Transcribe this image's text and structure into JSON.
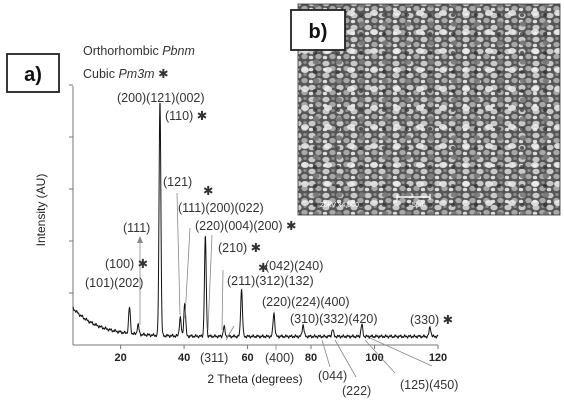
{
  "panel_a_label": "a)",
  "panel_b_label": "b)",
  "sem_scale_text": "5µm",
  "sem_info_text": "20kV  x4,000",
  "chart_data": {
    "type": "line",
    "title": "",
    "xlabel": "2 Theta (degrees)",
    "ylabel": "Intensity (AU)",
    "xlim": [
      5,
      120
    ],
    "ylim": [
      0,
      100
    ],
    "xticks": [
      20,
      40,
      60,
      80,
      100,
      120
    ],
    "y_tick_labels": false,
    "grid": false,
    "legend": [
      {
        "name": "Orthorhombic",
        "italic": "Pbnm",
        "marker": ""
      },
      {
        "name": "Cubic",
        "italic": "Pm3m",
        "marker": "✱"
      }
    ],
    "peaks": [
      {
        "x": 22.8,
        "y": 11
      },
      {
        "x": 25.5,
        "y": 4
      },
      {
        "x": 32.4,
        "y": 100
      },
      {
        "x": 38.8,
        "y": 8
      },
      {
        "x": 40.2,
        "y": 14
      },
      {
        "x": 46.7,
        "y": 42
      },
      {
        "x": 52.6,
        "y": 4
      },
      {
        "x": 58.1,
        "y": 20
      },
      {
        "x": 68.3,
        "y": 10
      },
      {
        "x": 77.5,
        "y": 5
      },
      {
        "x": 86.8,
        "y": 3
      },
      {
        "x": 96.0,
        "y": 5
      },
      {
        "x": 117.5,
        "y": 4
      }
    ],
    "annotations": [
      {
        "text": "(200)(121)(002)",
        "marker": ""
      },
      {
        "text": "(110)",
        "marker": "✱"
      },
      {
        "text": "(121)",
        "marker": ""
      },
      {
        "text": "(111)(200)(022)",
        "marker": "✱"
      },
      {
        "text": "(111)",
        "marker": ""
      },
      {
        "text": "(100)",
        "marker": "✱"
      },
      {
        "text": "(101)(202)",
        "marker": ""
      },
      {
        "text": "(220)(004)(200)",
        "marker": "✱"
      },
      {
        "text": "(210)",
        "marker": "✱"
      },
      {
        "text": "(211)(312)(132)",
        "marker": "✱"
      },
      {
        "text": "(042)(240)",
        "marker": ""
      },
      {
        "text": "(220)(224)(400)",
        "marker": ""
      },
      {
        "text": "(310)(332)(420)",
        "marker": ""
      },
      {
        "text": "(330)",
        "marker": "✱"
      },
      {
        "text": "(311)",
        "marker": ""
      },
      {
        "text": "(400)",
        "marker": ""
      },
      {
        "text": "(044)",
        "marker": ""
      },
      {
        "text": "(222)",
        "marker": ""
      },
      {
        "text": "(125)(450)",
        "marker": ""
      }
    ]
  }
}
